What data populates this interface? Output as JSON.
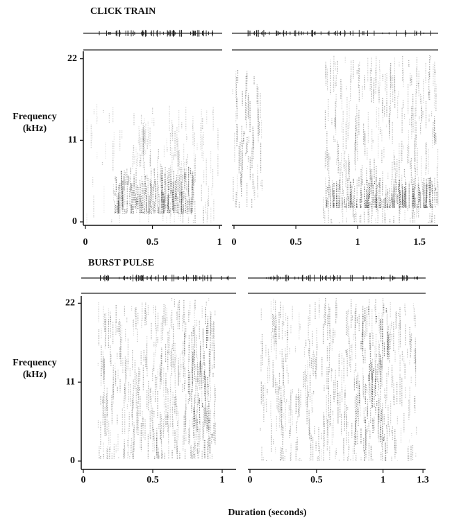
{
  "chart_data": [
    {
      "type": "spectrogram",
      "title": "CLICK TRAIN",
      "ylabel": "Frequency (kHz)",
      "ylim": [
        0,
        23
      ],
      "yticks": [
        0,
        11,
        22
      ],
      "xlim": [
        0,
        1.02
      ],
      "xticks": [
        0,
        0.5,
        1
      ]
    },
    {
      "type": "spectrogram",
      "xlim": [
        0,
        1.65
      ],
      "xticks": [
        0,
        0.5,
        1,
        1.5
      ]
    },
    {
      "type": "spectrogram",
      "title": "BURST PULSE",
      "ylabel": "Frequency (kHz)",
      "ylim": [
        0,
        23
      ],
      "yticks": [
        0,
        11,
        22
      ],
      "xlim": [
        0,
        1.1
      ],
      "xticks": [
        0,
        0.5,
        1
      ]
    },
    {
      "type": "spectrogram",
      "xlim": [
        0,
        1.32
      ],
      "xticks": [
        0,
        0.5,
        1,
        1.3
      ],
      "xlabel": "Duration (seconds)"
    }
  ]
}
